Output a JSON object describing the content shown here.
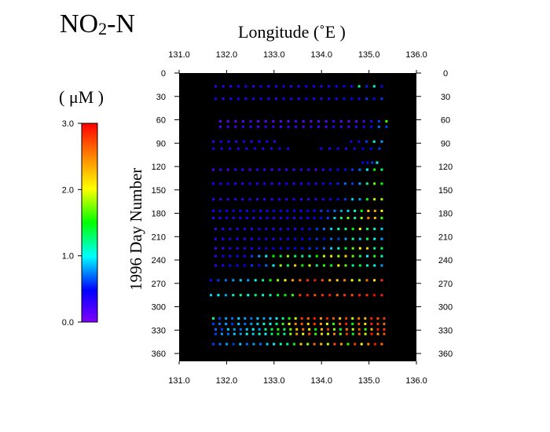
{
  "title": {
    "main": "NO",
    "subscript": "2",
    "suffix": "-N"
  },
  "top_axis_label": "Longitude  (˚E )",
  "colorbar": {
    "unit_label": "( μM )",
    "ticks": [
      "3.0",
      "2.0",
      "1.0",
      "0.0"
    ]
  },
  "y_axis_label": "1996  Day  Number",
  "colors": {
    "plot_bg": "#000000",
    "page_bg": "#ffffff"
  },
  "chart_data": {
    "type": "scatter",
    "title": "NO2-N",
    "xlabel": "Longitude  (˚E )",
    "ylabel": "1996  Day  Number",
    "xlim": [
      131.0,
      136.0
    ],
    "ylim": [
      0,
      365
    ],
    "y_inverted": true,
    "x_ticks": [
      "131.0",
      "132.0",
      "133.0",
      "134.0",
      "135.0",
      "136.0"
    ],
    "y_ticks": [
      "0",
      "30",
      "60",
      "90",
      "120",
      "150",
      "180",
      "210",
      "240",
      "270",
      "300",
      "330",
      "360"
    ],
    "color_scale": {
      "label": "( μM )",
      "min": 0.0,
      "max": 3.0,
      "colormap": "rainbow (purple-blue-cyan-green-yellow-red)"
    },
    "rows": [
      {
        "day": 17,
        "x_start": 131.77,
        "x_end": 135.27,
        "n": 23,
        "values": [
          0.3,
          0.35,
          0.3,
          0.4,
          0.35,
          0.3,
          0.4,
          0.3,
          0.35,
          0.4,
          0.3,
          0.35,
          0.4,
          0.35,
          0.3,
          0.4,
          0.5,
          0.45,
          0.35,
          1.2,
          0.55,
          1.1,
          0.5
        ]
      },
      {
        "day": 33,
        "x_start": 131.77,
        "x_end": 135.27,
        "n": 23,
        "values": [
          0.4,
          0.3,
          0.35,
          0.4,
          0.3,
          0.35,
          0.4,
          0.35,
          0.3,
          0.4,
          0.35,
          0.3,
          0.4,
          0.35,
          0.3,
          0.4,
          0.35,
          0.5,
          0.45,
          0.4,
          0.6,
          0.5,
          0.6
        ]
      },
      {
        "day": 62,
        "x_start": 131.87,
        "x_end": 135.37,
        "n": 23,
        "values": [
          0.1,
          0.15,
          0.1,
          0.15,
          0.2,
          0.1,
          0.15,
          0.1,
          0.15,
          0.1,
          0.2,
          0.15,
          0.1,
          0.15,
          0.1,
          0.2,
          0.15,
          0.1,
          0.15,
          0.2,
          0.3,
          0.6,
          1.6
        ]
      },
      {
        "day": 69,
        "x_start": 131.87,
        "x_end": 135.37,
        "n": 23,
        "values": [
          0.2,
          0.25,
          0.2,
          0.3,
          0.25,
          0.2,
          0.3,
          0.25,
          0.2,
          0.3,
          0.25,
          0.2,
          0.3,
          0.25,
          0.2,
          0.3,
          0.25,
          0.2,
          0.3,
          0.35,
          0.5,
          0.7,
          0.6
        ]
      },
      {
        "day": 88,
        "x_start": 131.72,
        "x_end": 135.27,
        "n": 23,
        "values": [
          0.3,
          0.4,
          0.35,
          0.3,
          0.4,
          0.3,
          0.35,
          0.4,
          0.3,
          null,
          null,
          null,
          null,
          null,
          null,
          null,
          null,
          null,
          0.4,
          0.5,
          0.6,
          1.1,
          0.8
        ]
      },
      {
        "day": 97,
        "x_start": 131.72,
        "x_end": 135.22,
        "n": 21,
        "values": [
          0.4,
          0.35,
          0.4,
          0.3,
          0.35,
          0.4,
          0.3,
          0.35,
          0.4,
          0.35,
          null,
          null,
          null,
          0.4,
          0.35,
          0.4,
          0.3,
          0.5,
          0.45,
          0.5,
          0.6
        ]
      },
      {
        "day": 115,
        "x_start": 134.87,
        "x_end": 135.17,
        "n": 4,
        "values": [
          0.5,
          0.4,
          0.6,
          1.0
        ]
      },
      {
        "day": 124,
        "x_start": 131.72,
        "x_end": 135.27,
        "n": 24,
        "values": [
          0.2,
          0.25,
          0.2,
          0.3,
          0.25,
          0.2,
          0.3,
          0.25,
          0.2,
          0.3,
          0.25,
          0.2,
          0.3,
          0.25,
          0.2,
          0.3,
          0.35,
          0.4,
          0.5,
          0.6,
          0.7,
          1.0,
          1.5,
          1.3
        ]
      },
      {
        "day": 142,
        "x_start": 131.72,
        "x_end": 135.27,
        "n": 24,
        "values": [
          0.4,
          0.35,
          0.4,
          0.35,
          0.3,
          0.4,
          0.35,
          0.4,
          0.3,
          0.35,
          0.4,
          0.3,
          0.35,
          0.4,
          0.3,
          0.5,
          0.45,
          0.55,
          0.7,
          0.6,
          0.8,
          1.2,
          1.7,
          1.5
        ]
      },
      {
        "day": 162,
        "x_start": 131.72,
        "x_end": 135.27,
        "n": 24,
        "values": [
          0.3,
          0.25,
          0.3,
          0.35,
          0.3,
          0.35,
          0.3,
          0.25,
          0.3,
          0.35,
          0.3,
          0.35,
          0.3,
          0.25,
          0.3,
          0.35,
          0.4,
          0.5,
          0.6,
          0.9,
          0.8,
          1.4,
          1.9,
          1.8
        ]
      },
      {
        "day": 177,
        "x_start": 131.72,
        "x_end": 135.27,
        "n": 26,
        "values": [
          0.4,
          0.5,
          0.45,
          0.5,
          0.4,
          0.5,
          0.45,
          0.5,
          0.4,
          0.5,
          0.45,
          0.5,
          0.4,
          0.5,
          0.45,
          0.5,
          0.6,
          0.55,
          0.7,
          0.8,
          0.9,
          1.1,
          1.5,
          2.2,
          2.4,
          2.1
        ]
      },
      {
        "day": 186,
        "x_start": 131.72,
        "x_end": 135.27,
        "n": 26,
        "values": [
          0.3,
          0.35,
          0.4,
          0.3,
          0.35,
          0.4,
          0.3,
          0.35,
          0.4,
          0.3,
          0.35,
          0.4,
          0.3,
          0.35,
          0.4,
          0.45,
          0.5,
          0.6,
          0.9,
          1.3,
          1.7,
          1.2,
          1.8,
          2.5,
          2.3,
          1.6
        ]
      },
      {
        "day": 200,
        "x_start": 131.77,
        "x_end": 135.27,
        "n": 24,
        "values": [
          0.3,
          0.35,
          0.3,
          0.35,
          0.3,
          0.35,
          0.4,
          0.35,
          0.3,
          0.35,
          0.4,
          0.35,
          0.4,
          0.5,
          0.6,
          0.7,
          0.9,
          1.1,
          1.2,
          1.5,
          2.0,
          1.3,
          1.1,
          0.9
        ]
      },
      {
        "day": 213,
        "x_start": 131.77,
        "x_end": 135.27,
        "n": 24,
        "values": [
          0.3,
          0.35,
          0.4,
          0.35,
          0.3,
          0.35,
          0.4,
          0.35,
          0.3,
          0.35,
          0.4,
          0.5,
          0.4,
          0.5,
          0.6,
          0.5,
          0.7,
          0.6,
          0.8,
          1.2,
          0.9,
          1.3,
          1.0,
          0.8
        ]
      },
      {
        "day": 225,
        "x_start": 131.77,
        "x_end": 135.27,
        "n": 24,
        "values": [
          0.25,
          0.3,
          0.35,
          0.3,
          0.35,
          0.4,
          0.35,
          0.4,
          0.45,
          0.4,
          0.5,
          0.45,
          0.5,
          0.6,
          0.55,
          0.7,
          0.9,
          1.1,
          1.4,
          1.7,
          2.0,
          2.2,
          1.2,
          1.3
        ]
      },
      {
        "day": 235,
        "x_start": 131.77,
        "x_end": 135.27,
        "n": 24,
        "values": [
          0.3,
          0.4,
          0.35,
          0.5,
          0.4,
          0.6,
          0.8,
          1.0,
          1.5,
          1.4,
          1.8,
          1.3,
          1.2,
          1.1,
          1.5,
          1.9,
          2.1,
          1.8,
          2.2,
          1.7,
          1.3,
          1.0,
          1.6,
          1.1
        ]
      },
      {
        "day": 247,
        "x_start": 131.77,
        "x_end": 135.27,
        "n": 24,
        "values": [
          0.3,
          0.35,
          0.5,
          0.4,
          0.45,
          0.6,
          0.5,
          0.7,
          1.0,
          1.8,
          1.3,
          2.2,
          1.5,
          1.9,
          1.2,
          1.6,
          1.4,
          2.0,
          1.7,
          1.2,
          1.4,
          1.1,
          1.0,
          0.8
        ]
      },
      {
        "day": 266,
        "x_start": 131.67,
        "x_end": 135.27,
        "n": 24,
        "values": [
          0.5,
          0.6,
          0.7,
          0.8,
          0.9,
          0.8,
          1.0,
          1.2,
          1.5,
          1.8,
          2.0,
          2.4,
          2.6,
          2.8,
          2.9,
          2.7,
          2.3,
          2.2,
          2.5,
          2.0,
          1.8,
          2.6,
          2.1,
          2.8
        ]
      },
      {
        "day": 285,
        "x_start": 131.67,
        "x_end": 135.27,
        "n": 24,
        "values": [
          0.9,
          1.0,
          0.8,
          1.1,
          1.2,
          1.0,
          1.3,
          1.1,
          1.2,
          1.4,
          1.5,
          1.6,
          2.8,
          2.9,
          2.7,
          2.8,
          2.9,
          2.6,
          2.8,
          2.7,
          2.9,
          2.8,
          3.0,
          2.9
        ]
      },
      {
        "day": 315,
        "x_start": 131.72,
        "x_end": 135.32,
        "n": 28,
        "values": [
          1.2,
          0.6,
          0.8,
          0.7,
          0.9,
          0.8,
          0.7,
          0.9,
          0.8,
          0.9,
          1.0,
          1.2,
          1.5,
          1.9,
          2.8,
          2.6,
          2.9,
          2.4,
          2.9,
          2.7,
          2.2,
          2.8,
          1.9,
          2.6,
          2.3,
          2.9,
          2.7,
          2.8
        ]
      },
      {
        "day": 322,
        "x_start": 131.72,
        "x_end": 135.32,
        "n": 28,
        "values": [
          0.6,
          0.7,
          0.8,
          0.6,
          0.9,
          0.7,
          0.8,
          0.9,
          1.1,
          1.0,
          1.3,
          1.6,
          2.0,
          2.5,
          2.7,
          2.2,
          2.8,
          2.4,
          2.0,
          1.6,
          2.6,
          2.9,
          1.5,
          2.7,
          2.1,
          2.9,
          2.8,
          2.6
        ]
      },
      {
        "day": 329,
        "x_start": 131.77,
        "x_end": 135.32,
        "n": 28,
        "values": [
          0.7,
          0.6,
          0.9,
          0.8,
          0.7,
          0.9,
          1.0,
          0.8,
          1.2,
          1.4,
          1.6,
          1.3,
          1.7,
          2.2,
          2.6,
          2.1,
          1.5,
          2.3,
          2.8,
          1.8,
          1.4,
          2.5,
          1.9,
          2.7,
          1.6,
          2.3,
          2.9,
          2.8
        ]
      },
      {
        "day": 335,
        "x_start": 131.77,
        "x_end": 135.32,
        "n": 28,
        "values": [
          0.6,
          0.8,
          0.7,
          0.9,
          0.8,
          1.0,
          0.9,
          1.1,
          1.0,
          1.3,
          1.5,
          1.2,
          1.8,
          2.4,
          2.0,
          2.7,
          1.6,
          2.2,
          1.9,
          2.5,
          1.7,
          2.8,
          1.4,
          2.6,
          1.9,
          2.9,
          2.4,
          2.7
        ]
      },
      {
        "day": 348,
        "x_start": 131.72,
        "x_end": 135.27,
        "n": 26,
        "values": [
          0.6,
          0.7,
          0.8,
          0.6,
          0.9,
          0.7,
          0.8,
          0.7,
          0.9,
          1.0,
          1.1,
          1.2,
          1.5,
          2.2,
          1.8,
          2.6,
          2.3,
          1.9,
          2.7,
          2.4,
          1.6,
          2.8,
          2.0,
          2.5,
          2.9,
          2.6
        ]
      }
    ]
  }
}
